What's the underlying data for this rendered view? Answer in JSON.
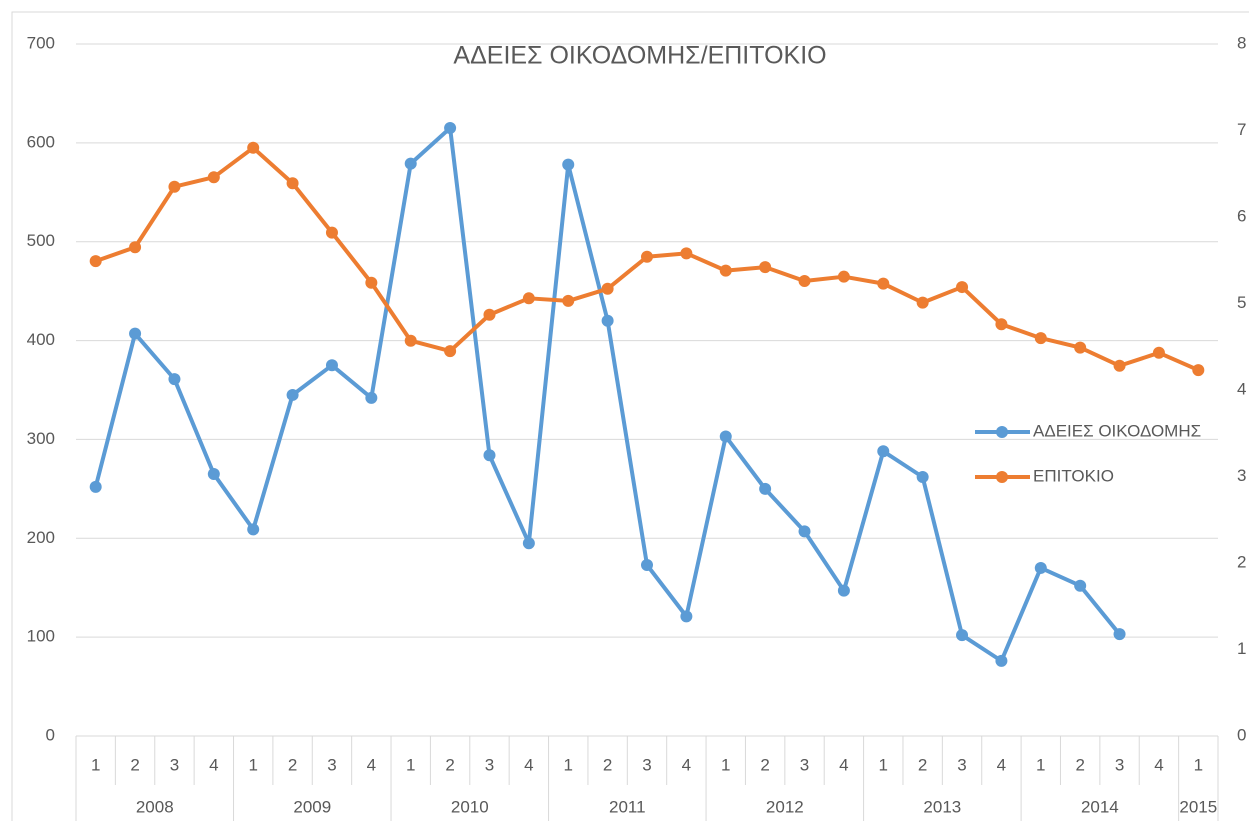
{
  "chart_data": {
    "type": "line",
    "title": "ΑΔΕΙΕΣ ΟΙΚΟΔΟΜΗΣ/ΕΠΙΤΟΚΙΟ",
    "categories": [
      "1",
      "2",
      "3",
      "4",
      "1",
      "2",
      "3",
      "4",
      "1",
      "2",
      "3",
      "4",
      "1",
      "2",
      "3",
      "4",
      "1",
      "2",
      "3",
      "4",
      "1",
      "2",
      "3",
      "4",
      "1",
      "2",
      "3",
      "4",
      "1"
    ],
    "years": [
      "2008",
      null,
      null,
      null,
      "2009",
      null,
      null,
      null,
      "2010",
      null,
      null,
      null,
      "2011",
      null,
      null,
      null,
      "2012",
      null,
      null,
      null,
      "2013",
      null,
      null,
      null,
      "2014",
      null,
      null,
      null,
      "2015"
    ],
    "series": [
      {
        "name": "ΑΔΕΙΕΣ ΟΙΚΟΔΟΜΗΣ",
        "color": "#5b9bd5",
        "values": [
          252,
          407,
          361,
          265,
          209,
          345,
          375,
          342,
          579,
          615,
          284,
          195,
          578,
          420,
          173,
          121,
          303,
          250,
          207,
          147,
          288,
          262,
          102,
          76,
          170,
          152,
          103,
          null,
          null
        ]
      },
      {
        "name": "ΕΠΙΤΟΚΙΟ",
        "color": "#ed7d31",
        "axis": "y2",
        "values": [
          5.49,
          5.65,
          6.35,
          6.46,
          6.8,
          6.39,
          5.82,
          5.24,
          4.57,
          4.45,
          4.87,
          5.06,
          5.03,
          5.17,
          5.54,
          5.58,
          5.38,
          5.42,
          5.26,
          5.31,
          5.23,
          5.01,
          5.19,
          4.76,
          4.6,
          4.49,
          4.28,
          4.43,
          4.23
        ]
      }
    ],
    "ylim": [
      0,
      700
    ],
    "yticks": [
      0,
      100,
      200,
      300,
      400,
      500,
      600,
      700
    ],
    "y2lim": [
      0,
      8
    ],
    "y2ticks": [
      0,
      1,
      2,
      3,
      4,
      5,
      6,
      7,
      8
    ],
    "grid": true,
    "legend": "right"
  }
}
